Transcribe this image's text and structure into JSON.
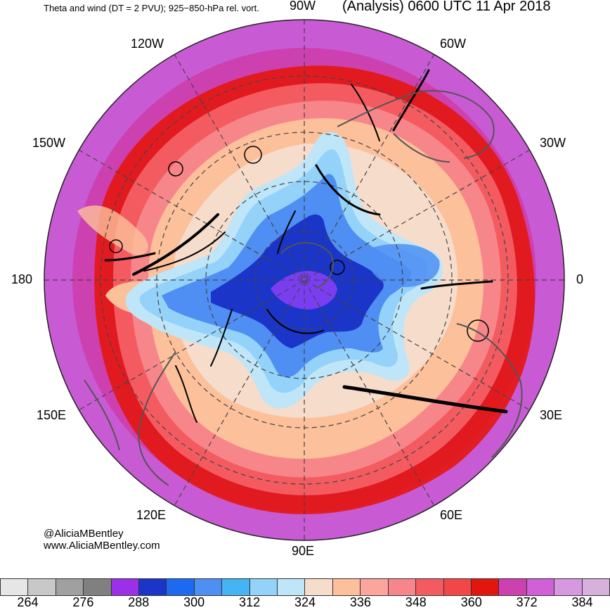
{
  "header": {
    "left_title": "Theta and wind (DT = 2 PVU); 925−850-hPa rel. vort.",
    "right_title": "(Analysis) 0600 UTC 11 Apr 2018"
  },
  "longitude_labels": {
    "w90": "90W",
    "w60": "60W",
    "w120": "120W",
    "w150": "150W",
    "w30": "30W",
    "lon180": "180",
    "lon0": "0",
    "e150": "150E",
    "e30": "30E",
    "e120": "120E",
    "e60": "60E",
    "e90": "90E"
  },
  "credit": {
    "handle": "@AliciaMBentley",
    "website": "www.AliciaMBentley.com"
  },
  "colorbar": {
    "colors": [
      "#e6e6e6",
      "#c8c8c8",
      "#a0a0a0",
      "#808080",
      "#9a30e8",
      "#1a35c8",
      "#1d6af0",
      "#4f8ef2",
      "#45b4f5",
      "#94d2fa",
      "#bee6f8",
      "#f6dccb",
      "#fcc09b",
      "#fba59c",
      "#f7868a",
      "#f45b61",
      "#f24747",
      "#e3160f",
      "#cc40b0",
      "#d15fd8",
      "#d698de",
      "#d7b0dc"
    ],
    "labels": [
      "264",
      "276",
      "288",
      "300",
      "312",
      "324",
      "336",
      "348",
      "360",
      "372",
      "384"
    ]
  }
}
